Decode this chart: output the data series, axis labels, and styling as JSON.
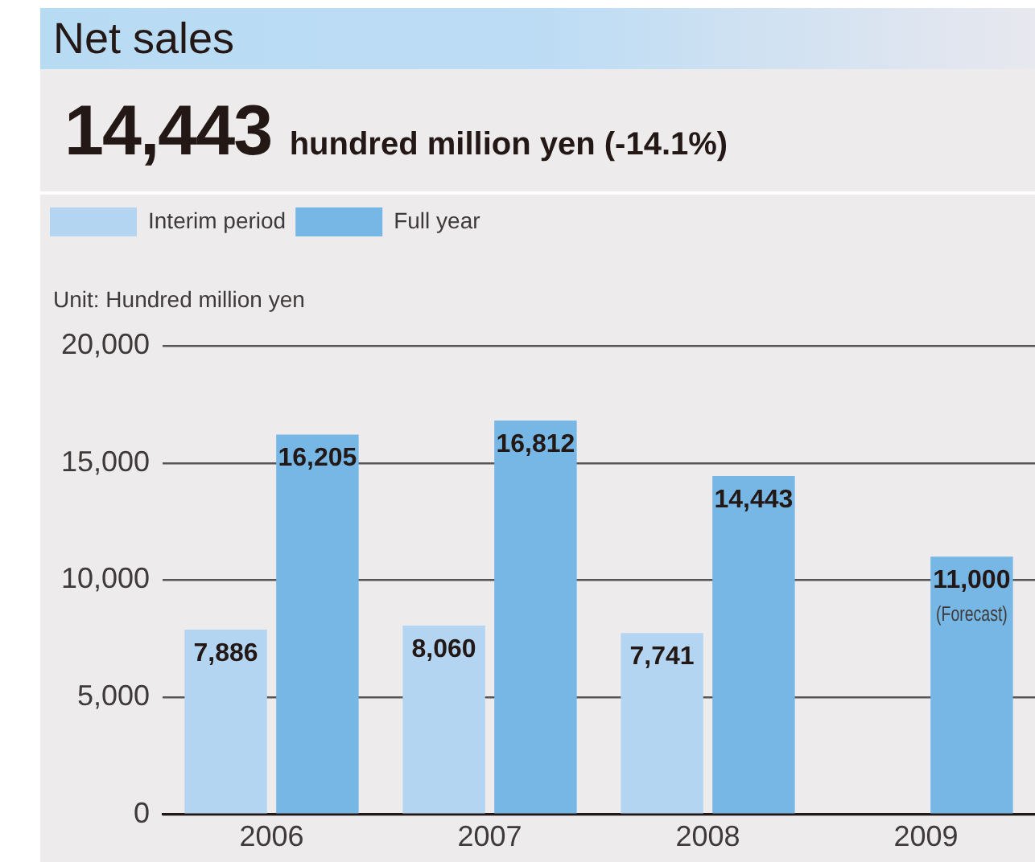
{
  "chart_data": {
    "type": "bar",
    "title": "Net sales",
    "subtitle": "14,443 hundred million yen (-14.1%)",
    "ylabel": "Unit: Hundred million yen",
    "categories": [
      "2006",
      "2007",
      "2008",
      "2009"
    ],
    "series": [
      {
        "name": "Interim period",
        "color": "#b3d5f1",
        "values": [
          7886,
          8060,
          7741,
          null
        ],
        "value_labels": [
          "7,886",
          "8,060",
          "7,741",
          null
        ]
      },
      {
        "name": "Full year",
        "color": "#76b7e5",
        "values": [
          16205,
          16812,
          14443,
          11000
        ],
        "value_labels": [
          "16,205",
          "16,812",
          "14,443",
          "11,000"
        ]
      }
    ],
    "ylim": [
      0,
      20000
    ],
    "yticks": [
      0,
      {
        "value": 5000,
        "label": "5,000"
      },
      {
        "value": 10000,
        "label": "10,000"
      },
      {
        "value": 15000,
        "label": "15,000"
      },
      {
        "value": 20000,
        "label": "20,000"
      }
    ],
    "grid": "y",
    "legend": "top left",
    "annotations": [
      {
        "text": "(Forecast)",
        "x": "2009",
        "y": 11000
      }
    ]
  }
}
